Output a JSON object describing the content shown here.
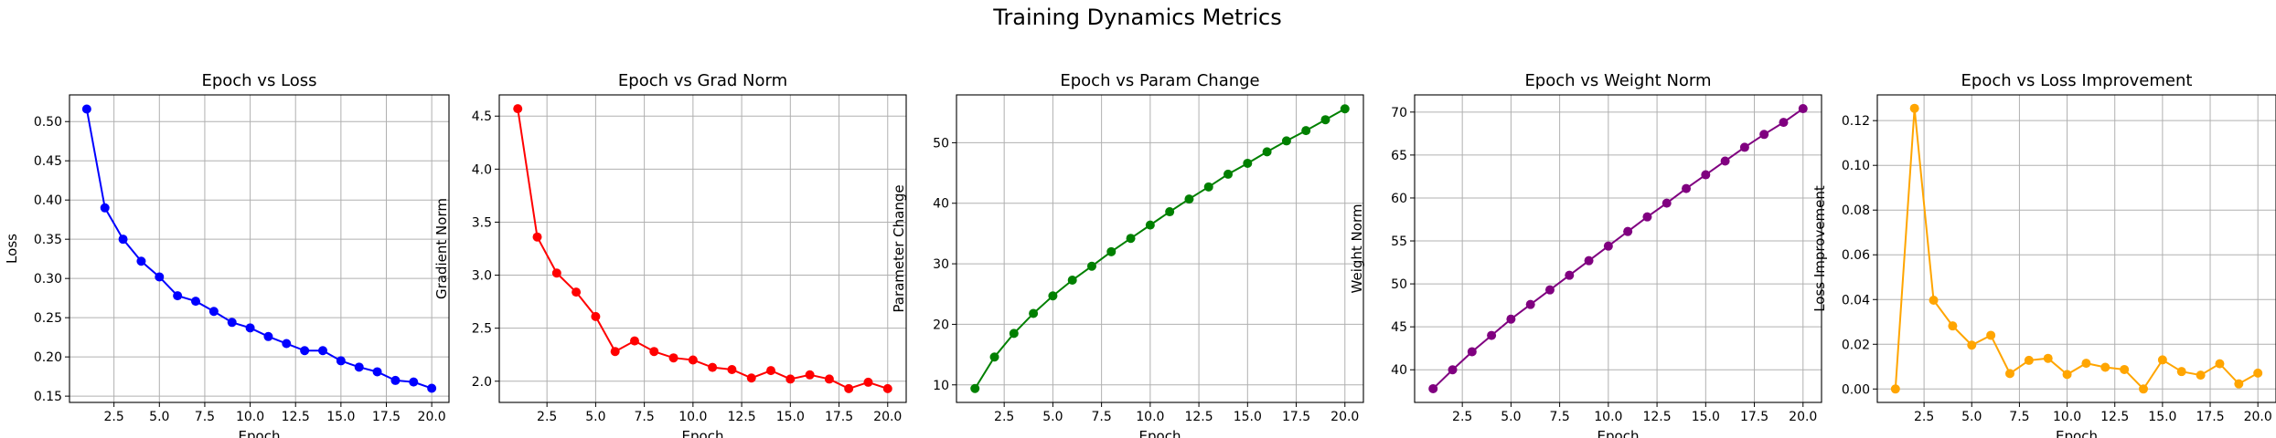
{
  "figure": {
    "title": "Training Dynamics Metrics"
  },
  "chart_data": [
    {
      "type": "line",
      "title": "Epoch vs Loss",
      "xlabel": "Epoch",
      "ylabel": "Loss",
      "color": "#0000ff",
      "grid": true,
      "marker": "circle",
      "x": [
        1,
        2,
        3,
        4,
        5,
        6,
        7,
        8,
        9,
        10,
        11,
        12,
        13,
        14,
        15,
        16,
        17,
        18,
        19,
        20
      ],
      "y": [
        0.516,
        0.39,
        0.35,
        0.322,
        0.302,
        0.278,
        0.271,
        0.258,
        0.244,
        0.237,
        0.226,
        0.217,
        0.208,
        0.208,
        0.195,
        0.187,
        0.181,
        0.17,
        0.168,
        0.16
      ],
      "xlim": [
        0.05,
        20.95
      ],
      "ylim": [
        0.142,
        0.534
      ],
      "xticks": [
        2.5,
        5.0,
        7.5,
        10.0,
        12.5,
        15.0,
        17.5,
        20.0
      ],
      "xtick_labels": [
        "2.5",
        "5.0",
        "7.5",
        "10.0",
        "12.5",
        "15.0",
        "17.5",
        "20.0"
      ],
      "yticks": [
        0.15,
        0.2,
        0.25,
        0.3,
        0.35,
        0.4,
        0.45,
        0.5
      ],
      "ytick_labels": [
        "0.15",
        "0.20",
        "0.25",
        "0.30",
        "0.35",
        "0.40",
        "0.45",
        "0.50"
      ]
    },
    {
      "type": "line",
      "title": "Epoch vs Grad Norm",
      "xlabel": "Epoch",
      "ylabel": "Gradient Norm",
      "color": "#ff0000",
      "grid": true,
      "marker": "circle",
      "x": [
        1,
        2,
        3,
        4,
        5,
        6,
        7,
        8,
        9,
        10,
        11,
        12,
        13,
        14,
        15,
        16,
        17,
        18,
        19,
        20
      ],
      "y": [
        4.57,
        3.36,
        3.02,
        2.84,
        2.61,
        2.28,
        2.38,
        2.28,
        2.22,
        2.2,
        2.13,
        2.11,
        2.03,
        2.1,
        2.02,
        2.06,
        2.02,
        1.93,
        1.99,
        1.93
      ],
      "xlim": [
        0.05,
        20.95
      ],
      "ylim": [
        1.8,
        4.7
      ],
      "xticks": [
        2.5,
        5.0,
        7.5,
        10.0,
        12.5,
        15.0,
        17.5,
        20.0
      ],
      "xtick_labels": [
        "2.5",
        "5.0",
        "7.5",
        "10.0",
        "12.5",
        "15.0",
        "17.5",
        "20.0"
      ],
      "yticks": [
        2.0,
        2.5,
        3.0,
        3.5,
        4.0,
        4.5
      ],
      "ytick_labels": [
        "2.0",
        "2.5",
        "3.0",
        "3.5",
        "4.0",
        "4.5"
      ]
    },
    {
      "type": "line",
      "title": "Epoch vs Param Change",
      "xlabel": "Epoch",
      "ylabel": "Parameter Change",
      "color": "#008000",
      "grid": true,
      "marker": "circle",
      "x": [
        1,
        2,
        3,
        4,
        5,
        6,
        7,
        8,
        9,
        10,
        11,
        12,
        13,
        14,
        15,
        16,
        17,
        18,
        19,
        20
      ],
      "y": [
        9.4,
        14.6,
        18.5,
        21.8,
        24.7,
        27.3,
        29.6,
        32.0,
        34.2,
        36.4,
        38.6,
        40.7,
        42.7,
        44.8,
        46.6,
        48.5,
        50.3,
        52.0,
        53.8,
        55.6
      ],
      "xlim": [
        0.05,
        20.95
      ],
      "ylim": [
        7.1,
        57.9
      ],
      "xticks": [
        2.5,
        5.0,
        7.5,
        10.0,
        12.5,
        15.0,
        17.5,
        20.0
      ],
      "xtick_labels": [
        "2.5",
        "5.0",
        "7.5",
        "10.0",
        "12.5",
        "15.0",
        "17.5",
        "20.0"
      ],
      "yticks": [
        10,
        20,
        30,
        40,
        50
      ],
      "ytick_labels": [
        "10",
        "20",
        "30",
        "40",
        "50"
      ]
    },
    {
      "type": "line",
      "title": "Epoch vs Weight Norm",
      "xlabel": "Epoch",
      "ylabel": "Weight Norm",
      "color": "#800080",
      "grid": true,
      "marker": "circle",
      "x": [
        1,
        2,
        3,
        4,
        5,
        6,
        7,
        8,
        9,
        10,
        11,
        12,
        13,
        14,
        15,
        16,
        17,
        18,
        19,
        20
      ],
      "y": [
        37.8,
        40.0,
        42.1,
        44.0,
        45.9,
        47.6,
        49.3,
        51.0,
        52.7,
        54.4,
        56.1,
        57.8,
        59.4,
        61.1,
        62.7,
        64.3,
        65.9,
        67.4,
        68.8,
        70.4
      ],
      "xlim": [
        0.05,
        20.95
      ],
      "ylim": [
        36.2,
        72.0
      ],
      "xticks": [
        2.5,
        5.0,
        7.5,
        10.0,
        12.5,
        15.0,
        17.5,
        20.0
      ],
      "xtick_labels": [
        "2.5",
        "5.0",
        "7.5",
        "10.0",
        "12.5",
        "15.0",
        "17.5",
        "20.0"
      ],
      "yticks": [
        40,
        45,
        50,
        55,
        60,
        65,
        70
      ],
      "ytick_labels": [
        "40",
        "45",
        "50",
        "55",
        "60",
        "65",
        "70"
      ]
    },
    {
      "type": "line",
      "title": "Epoch vs Loss Improvement",
      "xlabel": "Epoch",
      "ylabel": "Loss Improvement",
      "color": "#ffa500",
      "grid": true,
      "marker": "circle",
      "x": [
        1,
        2,
        3,
        4,
        5,
        6,
        7,
        8,
        9,
        10,
        11,
        12,
        13,
        14,
        15,
        16,
        17,
        18,
        19,
        20
      ],
      "y": [
        0.0,
        0.1255,
        0.0397,
        0.0282,
        0.0196,
        0.024,
        0.0069,
        0.0128,
        0.0137,
        0.0065,
        0.0115,
        0.0097,
        0.0087,
        0.0,
        0.013,
        0.0078,
        0.0062,
        0.0113,
        0.0023,
        0.0071
      ],
      "xlim": [
        0.05,
        20.95
      ],
      "ylim": [
        -0.006,
        0.1315
      ],
      "xticks": [
        2.5,
        5.0,
        7.5,
        10.0,
        12.5,
        15.0,
        17.5,
        20.0
      ],
      "xtick_labels": [
        "2.5",
        "5.0",
        "7.5",
        "10.0",
        "12.5",
        "15.0",
        "17.5",
        "20.0"
      ],
      "yticks": [
        0.0,
        0.02,
        0.04,
        0.06,
        0.08,
        0.1,
        0.12
      ],
      "ytick_labels": [
        "0.00",
        "0.02",
        "0.04",
        "0.06",
        "0.08",
        "0.10",
        "0.12"
      ]
    }
  ]
}
